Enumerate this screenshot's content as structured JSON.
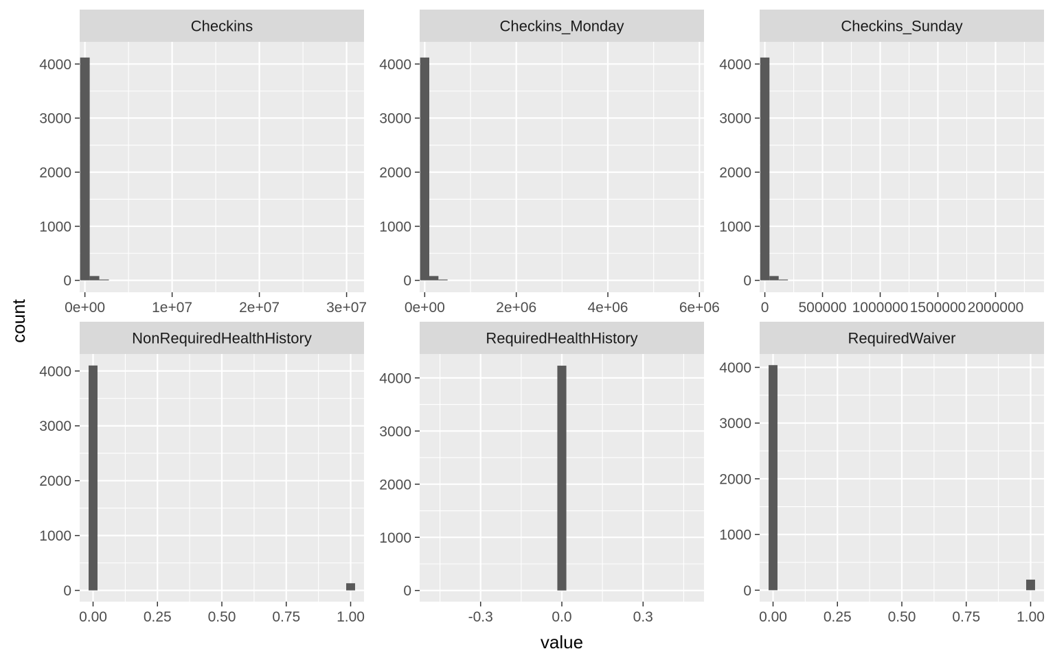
{
  "chart_data": {
    "type": "bar",
    "layout": "facet_wrap",
    "xlabel": "value",
    "ylabel": "count",
    "colors": {
      "panel_bg": "#EBEBEB",
      "strip_bg": "#D9D9D9",
      "bar_fill": "#595959",
      "grid": "#FFFFFF",
      "tick_text": "#4D4D4D"
    },
    "panels": [
      {
        "name": "Checkins",
        "xlim": [
          -600000,
          32000000
        ],
        "ylim": [
          -220,
          4410
        ],
        "x_ticks": [
          0,
          10000000,
          20000000,
          30000000
        ],
        "x_tick_labels": [
          "0e+00",
          "1e+07",
          "2e+07",
          "3e+07"
        ],
        "y_ticks": [
          0,
          1000,
          2000,
          3000,
          4000
        ],
        "y_tick_labels": [
          "0",
          "1000",
          "2000",
          "3000",
          "4000"
        ],
        "bin_width": 1100000,
        "bins": [
          {
            "x": 0,
            "count": 4120
          },
          {
            "x": 1100000,
            "count": 80
          },
          {
            "x": 2200000,
            "count": 15
          }
        ]
      },
      {
        "name": "Checkins_Monday",
        "xlim": [
          -110000,
          6100000
        ],
        "ylim": [
          -220,
          4410
        ],
        "x_ticks": [
          0,
          2000000,
          4000000,
          6000000
        ],
        "x_tick_labels": [
          "0e+00",
          "2e+06",
          "4e+06",
          "6e+06"
        ],
        "y_ticks": [
          0,
          1000,
          2000,
          3000,
          4000
        ],
        "y_tick_labels": [
          "0",
          "1000",
          "2000",
          "3000",
          "4000"
        ],
        "bin_width": 200000,
        "bins": [
          {
            "x": 0,
            "count": 4120
          },
          {
            "x": 200000,
            "count": 80
          },
          {
            "x": 400000,
            "count": 15
          }
        ]
      },
      {
        "name": "Checkins_Sunday",
        "xlim": [
          -45000,
          2420000
        ],
        "ylim": [
          -220,
          4410
        ],
        "x_ticks": [
          0,
          500000,
          1000000,
          1500000,
          2000000
        ],
        "x_tick_labels": [
          "0",
          "500000",
          "1000000",
          "1500000",
          "2000000"
        ],
        "y_ticks": [
          0,
          1000,
          2000,
          3000,
          4000
        ],
        "y_tick_labels": [
          "0",
          "1000",
          "2000",
          "3000",
          "4000"
        ],
        "bin_width": 80000,
        "bins": [
          {
            "x": 0,
            "count": 4120
          },
          {
            "x": 80000,
            "count": 80
          },
          {
            "x": 160000,
            "count": 15
          }
        ]
      },
      {
        "name": "NonRequiredHealthHistory",
        "xlim": [
          -0.052,
          1.052
        ],
        "ylim": [
          -205,
          4310
        ],
        "x_ticks": [
          0,
          0.25,
          0.5,
          0.75,
          1
        ],
        "x_tick_labels": [
          "0.00",
          "0.25",
          "0.50",
          "0.75",
          "1.00"
        ],
        "y_ticks": [
          0,
          1000,
          2000,
          3000,
          4000
        ],
        "y_tick_labels": [
          "0",
          "1000",
          "2000",
          "3000",
          "4000"
        ],
        "bin_width": 0.0345,
        "bins": [
          {
            "x": 0,
            "count": 4100
          },
          {
            "x": 1,
            "count": 130
          }
        ]
      },
      {
        "name": "RequiredHealthHistory",
        "xlim": [
          -0.525,
          0.525
        ],
        "ylim": [
          -210,
          4450
        ],
        "x_ticks": [
          -0.3,
          0,
          0.3
        ],
        "x_tick_labels": [
          "-0.3",
          "0.0",
          "0.3"
        ],
        "y_ticks": [
          0,
          1000,
          2000,
          3000,
          4000
        ],
        "y_tick_labels": [
          "0",
          "1000",
          "2000",
          "3000",
          "4000"
        ],
        "bin_width": 0.0333,
        "bins": [
          {
            "x": 0,
            "count": 4230
          }
        ]
      },
      {
        "name": "RequiredWaiver",
        "xlim": [
          -0.052,
          1.052
        ],
        "ylim": [
          -205,
          4240
        ],
        "x_ticks": [
          0,
          0.25,
          0.5,
          0.75,
          1
        ],
        "x_tick_labels": [
          "0.00",
          "0.25",
          "0.50",
          "0.75",
          "1.00"
        ],
        "y_ticks": [
          0,
          1000,
          2000,
          3000,
          4000
        ],
        "y_tick_labels": [
          "0",
          "1000",
          "2000",
          "3000",
          "4000"
        ],
        "bin_width": 0.0345,
        "bins": [
          {
            "x": 0,
            "count": 4040
          },
          {
            "x": 1,
            "count": 190
          }
        ]
      }
    ]
  }
}
